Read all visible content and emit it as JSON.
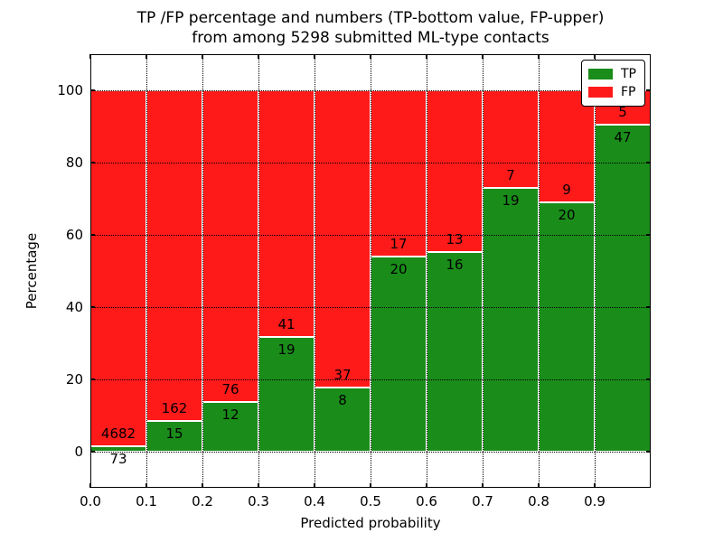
{
  "figure": {
    "title_line1": "TP /FP percentage and numbers (TP-bottom value, FP-upper)",
    "title_line2": "from among 5298 submitted ML-type contacts",
    "background_color": "#ffffff"
  },
  "chart_data": {
    "type": "bar",
    "stacked": true,
    "normalized_to_percent": true,
    "title": "TP /FP percentage and numbers (TP-bottom value, FP-upper) from among 5298 submitted ML-type contacts",
    "xlabel": "Predicted probability",
    "ylabel": "Percentage",
    "xlim": [
      0.0,
      1.0
    ],
    "ylim": [
      -10,
      110
    ],
    "grid": true,
    "grid_style": "dotted",
    "x_tick_labels": [
      "0.0",
      "0.1",
      "0.2",
      "0.3",
      "0.4",
      "0.5",
      "0.6",
      "0.7",
      "0.8",
      "0.9"
    ],
    "y_ticks": [
      0,
      20,
      40,
      60,
      80,
      100
    ],
    "y_tick_labels": [
      "0",
      "20",
      "40",
      "60",
      "80",
      "100"
    ],
    "bin_edges": [
      0.0,
      0.1,
      0.2,
      0.3,
      0.4,
      0.5,
      0.6,
      0.7,
      0.8,
      0.9,
      1.0
    ],
    "categories": [
      "0.0-0.1",
      "0.1-0.2",
      "0.2-0.3",
      "0.3-0.4",
      "0.4-0.5",
      "0.5-0.6",
      "0.6-0.7",
      "0.7-0.8",
      "0.8-0.9",
      "0.9-1.0"
    ],
    "series": [
      {
        "name": "TP",
        "color": "#1a8c1a",
        "edge_color": "#ffffff",
        "counts": [
          73,
          15,
          12,
          19,
          8,
          20,
          16,
          19,
          20,
          47
        ],
        "percentages": [
          1.54,
          8.47,
          13.64,
          31.67,
          17.78,
          54.05,
          55.17,
          73.08,
          68.97,
          90.38
        ]
      },
      {
        "name": "FP",
        "color": "#ff1a1a",
        "edge_color": "#ffffff",
        "counts": [
          4682,
          162,
          76,
          41,
          37,
          17,
          13,
          7,
          9,
          5
        ],
        "percentages": [
          98.46,
          91.53,
          86.36,
          68.33,
          82.22,
          45.95,
          44.83,
          26.92,
          31.03,
          9.62
        ]
      }
    ],
    "total_contacts": 5298,
    "legend": {
      "position": "upper right",
      "entries": [
        {
          "label": "TP",
          "color": "#1a8c1a"
        },
        {
          "label": "FP",
          "color": "#ff1a1a"
        }
      ]
    }
  }
}
